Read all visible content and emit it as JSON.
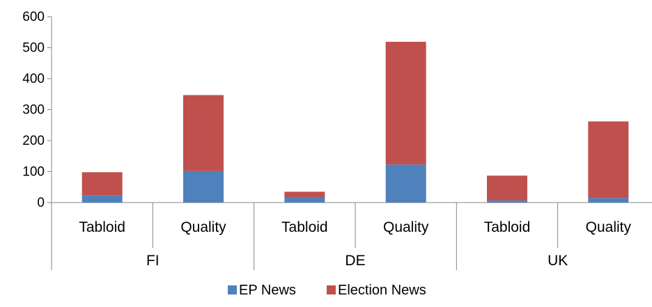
{
  "chart_data": {
    "type": "bar",
    "stacked": true,
    "groups": [
      {
        "label": "FI",
        "categories": [
          "Tabloid",
          "Quality"
        ]
      },
      {
        "label": "DE",
        "categories": [
          "Tabloid",
          "Quality"
        ]
      },
      {
        "label": "UK",
        "categories": [
          "Tabloid",
          "Quality"
        ]
      }
    ],
    "categories": [
      "FI Tabloid",
      "FI Quality",
      "DE Tabloid",
      "DE Quality",
      "UK Tabloid",
      "UK Quality"
    ],
    "series": [
      {
        "name": "EP News",
        "color": "#4F81BD",
        "values": [
          23,
          102,
          18,
          123,
          7,
          15
        ]
      },
      {
        "name": "Election News",
        "color": "#C0504D",
        "values": [
          75,
          245,
          17,
          396,
          80,
          247
        ]
      }
    ],
    "ylim": [
      0,
      600
    ],
    "yticks": [
      0,
      100,
      200,
      300,
      400,
      500,
      600
    ],
    "grid": false,
    "legend": "bottom",
    "title": "",
    "xlabel": "",
    "ylabel": ""
  }
}
